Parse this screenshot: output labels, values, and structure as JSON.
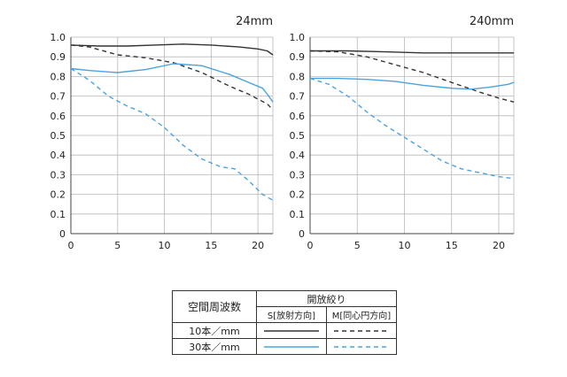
{
  "chart_data": [
    {
      "type": "line",
      "title": "24mm",
      "xlim": [
        0,
        21.6
      ],
      "ylim": [
        0,
        1.0
      ],
      "x_ticks": [
        0,
        5,
        10,
        15,
        20
      ],
      "y_ticks": [
        0,
        0.1,
        0.2,
        0.3,
        0.4,
        0.5,
        0.6,
        0.7,
        0.8,
        0.9,
        1.0
      ],
      "y_tick_labels": [
        "0",
        "0.1",
        "0.2",
        "0.3",
        "0.4",
        "0.5",
        "0.6",
        "0.7",
        "0.8",
        "0.9",
        "1.0"
      ],
      "grid": true,
      "series": [
        {
          "key": "s10",
          "x": [
            0,
            3,
            6,
            9,
            12,
            15,
            18,
            20,
            21,
            21.6
          ],
          "y": [
            0.96,
            0.955,
            0.955,
            0.96,
            0.965,
            0.96,
            0.95,
            0.94,
            0.93,
            0.91
          ]
        },
        {
          "key": "m10",
          "x": [
            0,
            2,
            5,
            8,
            11,
            14,
            17,
            19,
            21,
            21.6
          ],
          "y": [
            0.96,
            0.95,
            0.91,
            0.895,
            0.87,
            0.82,
            0.75,
            0.71,
            0.66,
            0.63
          ]
        },
        {
          "key": "s30",
          "x": [
            0,
            2,
            5,
            8,
            11,
            14,
            17,
            19,
            20.5,
            21,
            21.6
          ],
          "y": [
            0.84,
            0.83,
            0.82,
            0.835,
            0.865,
            0.855,
            0.81,
            0.77,
            0.74,
            0.71,
            0.67
          ]
        },
        {
          "key": "m30",
          "x": [
            0,
            2,
            4,
            6,
            8,
            10,
            12,
            14,
            16,
            17.5,
            19,
            20.5,
            21.6
          ],
          "y": [
            0.84,
            0.78,
            0.7,
            0.65,
            0.61,
            0.54,
            0.45,
            0.38,
            0.34,
            0.33,
            0.27,
            0.2,
            0.17
          ]
        }
      ]
    },
    {
      "type": "line",
      "title": "240mm",
      "xlim": [
        0,
        21.6
      ],
      "ylim": [
        0,
        1.0
      ],
      "x_ticks": [
        0,
        5,
        10,
        15,
        20
      ],
      "y_ticks": [
        0,
        0.1,
        0.2,
        0.3,
        0.4,
        0.5,
        0.6,
        0.7,
        0.8,
        0.9,
        1.0
      ],
      "y_tick_labels": [
        "0",
        "0.1",
        "0.2",
        "0.3",
        "0.4",
        "0.5",
        "0.6",
        "0.7",
        "0.8",
        "0.9",
        "1.0"
      ],
      "grid": true,
      "series": [
        {
          "key": "s10",
          "x": [
            0,
            4,
            8,
            12,
            16,
            20,
            21.6
          ],
          "y": [
            0.93,
            0.93,
            0.925,
            0.92,
            0.92,
            0.92,
            0.92
          ]
        },
        {
          "key": "m10",
          "x": [
            0,
            3,
            6,
            9,
            12,
            15,
            18,
            20,
            21.6
          ],
          "y": [
            0.93,
            0.925,
            0.9,
            0.86,
            0.82,
            0.77,
            0.72,
            0.69,
            0.67
          ]
        },
        {
          "key": "s30",
          "x": [
            0,
            3,
            6,
            9,
            12,
            15,
            17,
            19,
            21,
            21.6
          ],
          "y": [
            0.79,
            0.79,
            0.785,
            0.775,
            0.755,
            0.74,
            0.735,
            0.745,
            0.76,
            0.77
          ]
        },
        {
          "key": "m30",
          "x": [
            0,
            2,
            4,
            6,
            8,
            10,
            12,
            14,
            16,
            18,
            20,
            21.6
          ],
          "y": [
            0.79,
            0.76,
            0.7,
            0.62,
            0.55,
            0.49,
            0.43,
            0.37,
            0.33,
            0.31,
            0.29,
            0.28
          ]
        }
      ]
    }
  ],
  "styles": {
    "s10": {
      "color": "#333333",
      "dash": ""
    },
    "m10": {
      "color": "#333333",
      "dash": "5,4"
    },
    "s30": {
      "color": "#4aa3df",
      "dash": ""
    },
    "m30": {
      "color": "#4aa3df",
      "dash": "5,4"
    }
  },
  "legend": {
    "header_left": "空間周波数",
    "header_group": "開放絞り",
    "col_s": "S[放射方向]",
    "col_m": "M[同心円方向]",
    "rows": [
      {
        "label": "10本／mm",
        "s": "s10",
        "m": "m10"
      },
      {
        "label": "30本／mm",
        "s": "s30",
        "m": "m30"
      }
    ]
  }
}
